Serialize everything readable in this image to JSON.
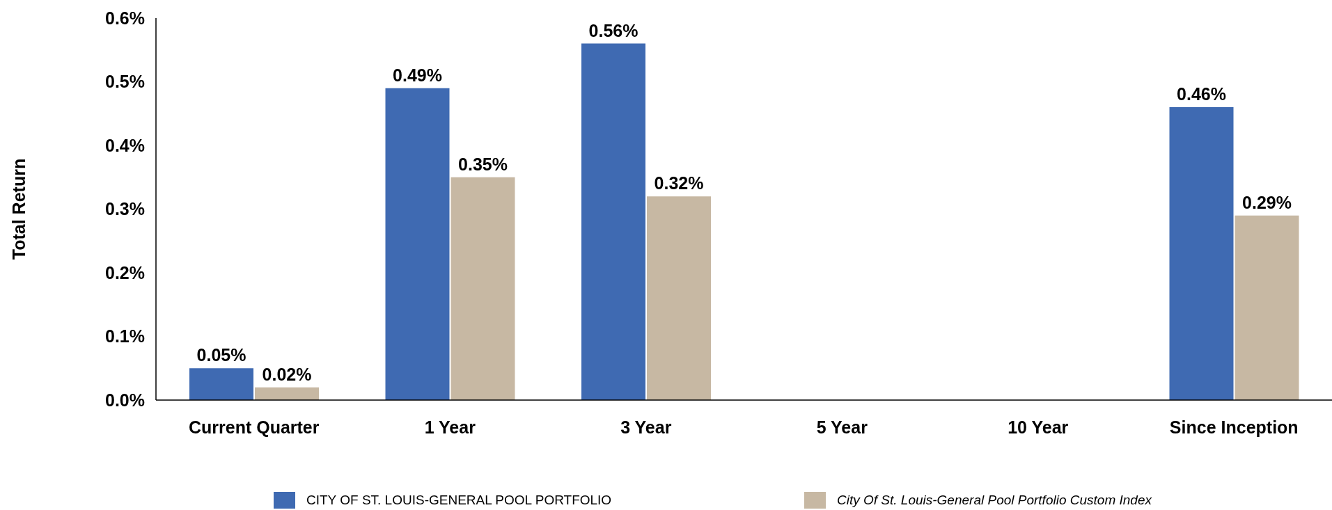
{
  "chart_data": {
    "type": "bar",
    "ylabel": "Total Return",
    "categories": [
      "Current Quarter",
      "1 Year",
      "3 Year",
      "5 Year",
      "10 Year",
      "Since Inception"
    ],
    "series": [
      {
        "name": "CITY OF ST. LOUIS-GENERAL POOL PORTFOLIO",
        "color": "#3f6ab2",
        "values": [
          0.05,
          0.49,
          0.56,
          null,
          null,
          0.46
        ],
        "value_labels": [
          "0.05%",
          "0.49%",
          "0.56%",
          null,
          null,
          "0.46%"
        ]
      },
      {
        "name": "City Of St. Louis-General Pool Portfolio Custom Index",
        "color": "#c7b8a3",
        "values": [
          0.02,
          0.35,
          0.32,
          null,
          null,
          0.29
        ],
        "value_labels": [
          "0.02%",
          "0.35%",
          "0.32%",
          null,
          null,
          "0.29%"
        ]
      }
    ],
    "ylim": [
      0,
      0.6
    ],
    "yticks": [
      {
        "value": 0,
        "label": "0.0%"
      },
      {
        "value": 0.1,
        "label": "0.1%"
      },
      {
        "value": 0.2,
        "label": "0.2%"
      },
      {
        "value": 0.3,
        "label": "0.3%"
      },
      {
        "value": 0.4,
        "label": "0.4%"
      },
      {
        "value": 0.5,
        "label": "0.5%"
      },
      {
        "value": 0.6,
        "label": "0.6%"
      }
    ],
    "legend": "bottom"
  }
}
